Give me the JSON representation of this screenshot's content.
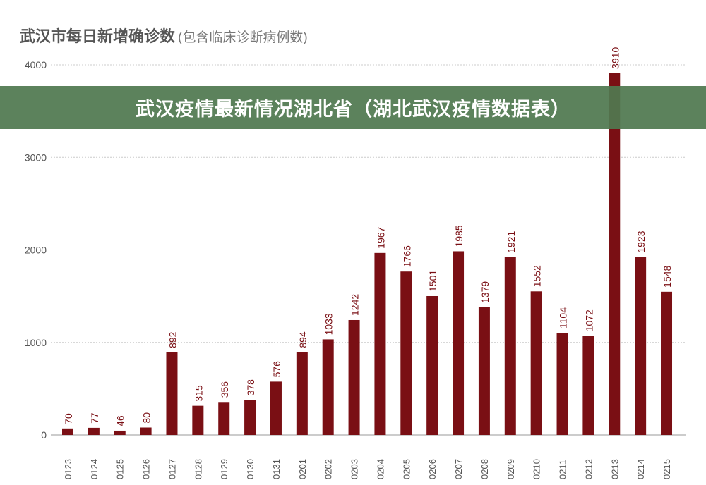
{
  "chart_data": {
    "type": "bar",
    "title": "武汉市每日新增确诊数",
    "subtitle": "(包含临床诊断病例数)",
    "categories": [
      "0123",
      "0124",
      "0125",
      "0126",
      "0127",
      "0128",
      "0129",
      "0130",
      "0131",
      "0201",
      "0202",
      "0203",
      "0204",
      "0205",
      "0206",
      "0207",
      "0208",
      "0209",
      "0210",
      "0211",
      "0212",
      "0213",
      "0214",
      "0215"
    ],
    "values": [
      70,
      77,
      46,
      80,
      892,
      315,
      356,
      378,
      576,
      894,
      1033,
      1242,
      1967,
      1766,
      1501,
      1985,
      1379,
      1921,
      1552,
      1104,
      1072,
      3910,
      1923,
      1548
    ],
    "yticks": [
      0,
      1000,
      2000,
      3000,
      4000
    ],
    "ylim": [
      0,
      4000
    ],
    "grid": true,
    "color": "#7a0f14"
  },
  "banner": {
    "text": "武汉疫情最新情况湖北省（湖北武汉疫情数据表）"
  }
}
